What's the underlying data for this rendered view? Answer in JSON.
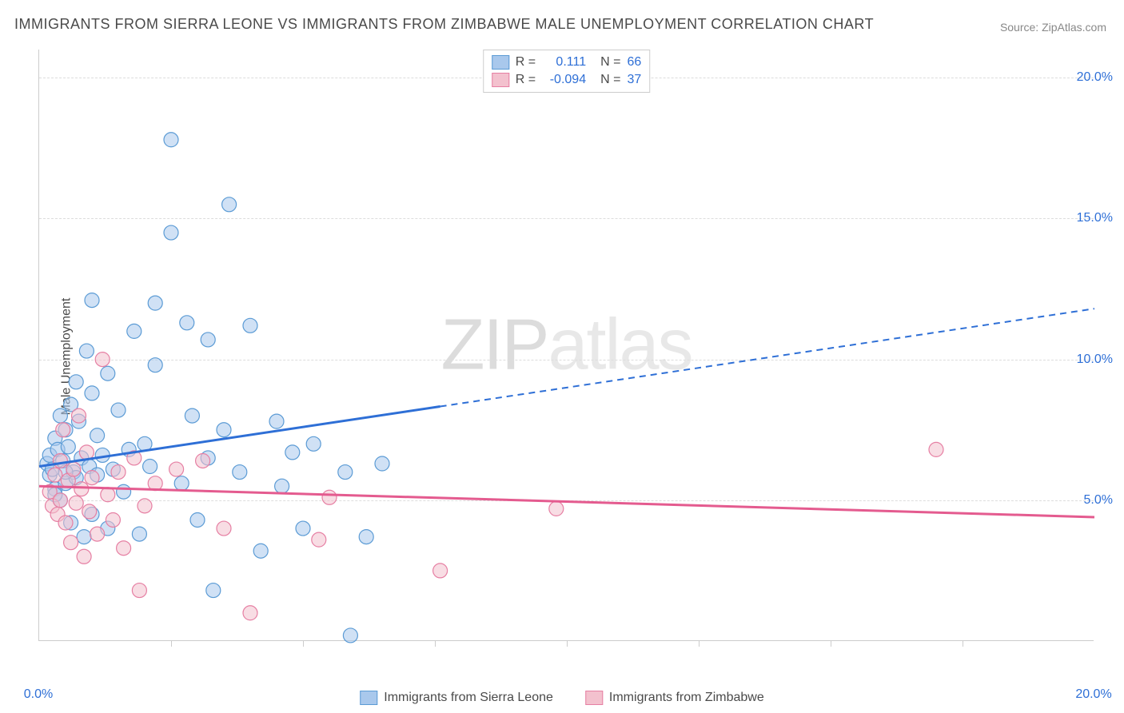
{
  "title": "IMMIGRANTS FROM SIERRA LEONE VS IMMIGRANTS FROM ZIMBABWE MALE UNEMPLOYMENT CORRELATION CHART",
  "source": "Source: ZipAtlas.com",
  "y_axis_label": "Male Unemployment",
  "watermark_zip": "ZIP",
  "watermark_atlas": "atlas",
  "chart": {
    "type": "scatter",
    "xlim": [
      0,
      20
    ],
    "ylim": [
      0,
      21
    ],
    "x_tick_labels": [
      {
        "value": 0,
        "label": "0.0%"
      },
      {
        "value": 20,
        "label": "20.0%"
      }
    ],
    "x_ticks_minor": [
      2.5,
      5,
      7.5,
      10,
      12.5,
      15,
      17.5
    ],
    "y_tick_labels": [
      {
        "value": 5,
        "label": "5.0%"
      },
      {
        "value": 10,
        "label": "10.0%"
      },
      {
        "value": 15,
        "label": "15.0%"
      },
      {
        "value": 20,
        "label": "20.0%"
      }
    ],
    "y_grid": [
      5,
      10,
      15,
      20
    ],
    "grid_color": "#dddddd",
    "background_color": "#ffffff",
    "marker_radius": 9,
    "marker_opacity": 0.55,
    "series": [
      {
        "name": "Immigrants from Sierra Leone",
        "color_fill": "#a9c8ec",
        "color_stroke": "#5b9bd5",
        "line_color": "#2e6fd6",
        "R": "0.111",
        "N": "66",
        "trend": {
          "x1": 0,
          "y1": 6.2,
          "x2": 20,
          "y2": 11.8,
          "solid_until_x": 7.6
        },
        "points": [
          [
            0.15,
            6.3
          ],
          [
            0.2,
            5.9
          ],
          [
            0.2,
            6.6
          ],
          [
            0.25,
            6.1
          ],
          [
            0.3,
            7.2
          ],
          [
            0.3,
            5.4
          ],
          [
            0.35,
            6.8
          ],
          [
            0.4,
            8.0
          ],
          [
            0.4,
            5.0
          ],
          [
            0.45,
            6.4
          ],
          [
            0.5,
            7.5
          ],
          [
            0.5,
            5.6
          ],
          [
            0.55,
            6.9
          ],
          [
            0.6,
            8.4
          ],
          [
            0.6,
            4.2
          ],
          [
            0.65,
            6.0
          ],
          [
            0.7,
            9.2
          ],
          [
            0.7,
            5.8
          ],
          [
            0.75,
            7.8
          ],
          [
            0.8,
            6.5
          ],
          [
            0.85,
            3.7
          ],
          [
            0.9,
            10.3
          ],
          [
            0.95,
            6.2
          ],
          [
            1.0,
            4.5
          ],
          [
            1.0,
            8.8
          ],
          [
            1.0,
            12.1
          ],
          [
            1.1,
            5.9
          ],
          [
            1.1,
            7.3
          ],
          [
            1.2,
            6.6
          ],
          [
            1.3,
            9.5
          ],
          [
            1.3,
            4.0
          ],
          [
            1.4,
            6.1
          ],
          [
            1.5,
            8.2
          ],
          [
            1.6,
            5.3
          ],
          [
            1.7,
            6.8
          ],
          [
            1.8,
            11.0
          ],
          [
            1.9,
            3.8
          ],
          [
            2.0,
            7.0
          ],
          [
            2.1,
            6.2
          ],
          [
            2.2,
            9.8
          ],
          [
            2.2,
            12.0
          ],
          [
            2.5,
            17.8
          ],
          [
            2.5,
            14.5
          ],
          [
            2.7,
            5.6
          ],
          [
            2.8,
            11.3
          ],
          [
            2.9,
            8.0
          ],
          [
            3.0,
            4.3
          ],
          [
            3.2,
            6.5
          ],
          [
            3.2,
            10.7
          ],
          [
            3.3,
            1.8
          ],
          [
            3.5,
            7.5
          ],
          [
            3.6,
            15.5
          ],
          [
            3.8,
            6.0
          ],
          [
            4.0,
            11.2
          ],
          [
            4.2,
            3.2
          ],
          [
            4.5,
            7.8
          ],
          [
            4.6,
            5.5
          ],
          [
            4.8,
            6.7
          ],
          [
            5.0,
            4.0
          ],
          [
            5.2,
            7.0
          ],
          [
            5.8,
            6.0
          ],
          [
            5.9,
            0.2
          ],
          [
            6.2,
            3.7
          ],
          [
            6.5,
            6.3
          ],
          [
            0.3,
            5.2
          ],
          [
            0.5,
            6.0
          ]
        ]
      },
      {
        "name": "Immigrants from Zimbabwe",
        "color_fill": "#f3c1ce",
        "color_stroke": "#e67fa3",
        "line_color": "#e45b8f",
        "R": "-0.094",
        "N": "37",
        "trend": {
          "x1": 0,
          "y1": 5.5,
          "x2": 20,
          "y2": 4.4,
          "solid_until_x": 20
        },
        "points": [
          [
            0.2,
            5.3
          ],
          [
            0.25,
            4.8
          ],
          [
            0.3,
            5.9
          ],
          [
            0.35,
            4.5
          ],
          [
            0.4,
            6.4
          ],
          [
            0.4,
            5.0
          ],
          [
            0.45,
            7.5
          ],
          [
            0.5,
            4.2
          ],
          [
            0.55,
            5.7
          ],
          [
            0.6,
            3.5
          ],
          [
            0.65,
            6.1
          ],
          [
            0.7,
            4.9
          ],
          [
            0.75,
            8.0
          ],
          [
            0.8,
            5.4
          ],
          [
            0.85,
            3.0
          ],
          [
            0.9,
            6.7
          ],
          [
            0.95,
            4.6
          ],
          [
            1.0,
            5.8
          ],
          [
            1.1,
            3.8
          ],
          [
            1.2,
            10.0
          ],
          [
            1.3,
            5.2
          ],
          [
            1.4,
            4.3
          ],
          [
            1.5,
            6.0
          ],
          [
            1.6,
            3.3
          ],
          [
            1.8,
            6.5
          ],
          [
            1.9,
            1.8
          ],
          [
            2.0,
            4.8
          ],
          [
            2.2,
            5.6
          ],
          [
            2.6,
            6.1
          ],
          [
            3.1,
            6.4
          ],
          [
            3.5,
            4.0
          ],
          [
            4.0,
            1.0
          ],
          [
            5.3,
            3.6
          ],
          [
            5.5,
            5.1
          ],
          [
            7.6,
            2.5
          ],
          [
            9.8,
            4.7
          ],
          [
            17.0,
            6.8
          ]
        ]
      }
    ]
  },
  "legend_top": {
    "R_label": "R =",
    "N_label": "N =",
    "text_color": "#4a4a4a",
    "value_color": "#2e6fd6"
  },
  "legend_bottom_label": "series_name",
  "axis_label_color": "#2e6fd6"
}
